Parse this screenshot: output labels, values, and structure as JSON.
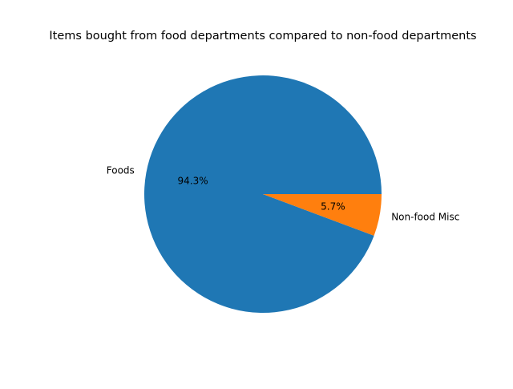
{
  "chart_data": {
    "type": "pie",
    "title": "Items bought from food departments compared to non-food departments",
    "slices": [
      {
        "label": "Foods",
        "value": 94.3,
        "pct_label": "94.3%",
        "color": "#1f77b4"
      },
      {
        "label": "Non-food Misc",
        "value": 5.7,
        "pct_label": "5.7%",
        "color": "#ff7f0e"
      }
    ],
    "start_angle_deg": 0,
    "direction": "counterclockwise"
  }
}
